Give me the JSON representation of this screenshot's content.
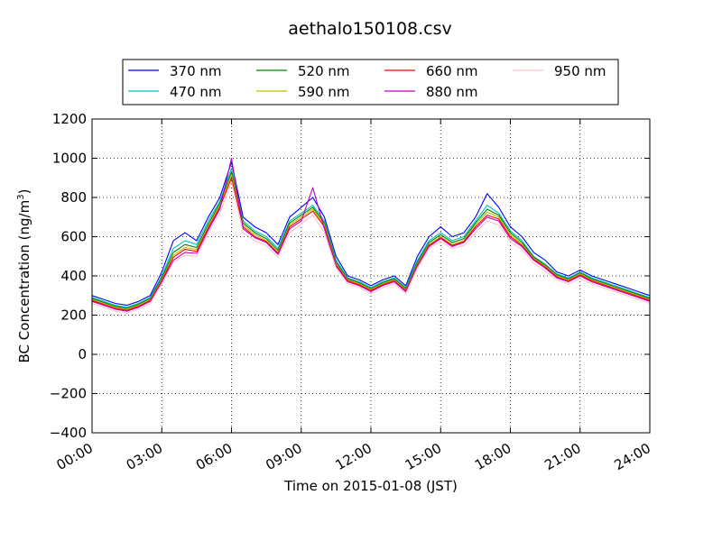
{
  "chart_data": {
    "type": "line",
    "title": "aethalo150108.csv",
    "xlabel": "Time on 2015-01-08 (JST)",
    "ylabel": "BC Concentration (ng/m",
    "ylabel_sup": "3",
    "ylabel_end": ")",
    "xlim": [
      "00:00",
      "24:00"
    ],
    "ylim": [
      -400,
      1200
    ],
    "x_ticks": [
      "00:00",
      "03:00",
      "06:00",
      "09:00",
      "12:00",
      "15:00",
      "18:00",
      "21:00",
      "24:00"
    ],
    "y_ticks": [
      -400,
      -200,
      0,
      200,
      400,
      600,
      800,
      1000,
      1200
    ],
    "grid": true,
    "legend_placement": "top",
    "x": [
      "00:00",
      "00:30",
      "01:00",
      "01:30",
      "02:00",
      "02:30",
      "03:00",
      "03:30",
      "04:00",
      "04:30",
      "05:00",
      "05:30",
      "06:00",
      "06:30",
      "07:00",
      "07:30",
      "08:00",
      "08:30",
      "09:00",
      "09:30",
      "10:00",
      "10:30",
      "11:00",
      "11:30",
      "12:00",
      "12:30",
      "13:00",
      "13:30",
      "14:00",
      "14:30",
      "15:00",
      "15:30",
      "16:00",
      "16:30",
      "17:00",
      "17:30",
      "18:00",
      "18:30",
      "19:00",
      "19:30",
      "20:00",
      "20:30",
      "21:00",
      "21:30",
      "22:00",
      "22:30",
      "23:00",
      "23:30",
      "24:00"
    ],
    "series": [
      {
        "name": "370 nm",
        "color": "#0000ff",
        "values": [
          300,
          280,
          260,
          250,
          270,
          300,
          420,
          580,
          620,
          580,
          700,
          800,
          980,
          700,
          650,
          620,
          560,
          700,
          750,
          800,
          700,
          500,
          400,
          380,
          350,
          380,
          400,
          350,
          500,
          600,
          650,
          600,
          620,
          700,
          820,
          750,
          650,
          600,
          520,
          480,
          420,
          400,
          430,
          400,
          380,
          360,
          340,
          320,
          300
        ]
      },
      {
        "name": "470 nm",
        "color": "#00bfbf",
        "values": [
          290,
          270,
          250,
          240,
          260,
          290,
          400,
          540,
          580,
          560,
          680,
          780,
          950,
          680,
          630,
          600,
          540,
          680,
          720,
          760,
          680,
          480,
          390,
          370,
          340,
          370,
          390,
          340,
          480,
          580,
          620,
          580,
          600,
          680,
          760,
          720,
          630,
          580,
          500,
          460,
          410,
          390,
          420,
          390,
          370,
          350,
          330,
          310,
          290
        ]
      },
      {
        "name": "520 nm",
        "color": "#008000",
        "values": [
          285,
          265,
          245,
          235,
          255,
          285,
          390,
          520,
          560,
          545,
          665,
          770,
          930,
          670,
          620,
          590,
          530,
          670,
          710,
          750,
          670,
          470,
          385,
          365,
          335,
          365,
          385,
          335,
          470,
          570,
          610,
          570,
          590,
          670,
          740,
          710,
          620,
          570,
          495,
          455,
          405,
          385,
          415,
          385,
          365,
          345,
          325,
          305,
          285
        ]
      },
      {
        "name": "590 nm",
        "color": "#bfbf00",
        "values": [
          280,
          260,
          240,
          230,
          250,
          280,
          380,
          505,
          545,
          535,
          655,
          760,
          915,
          660,
          610,
          580,
          520,
          660,
          700,
          740,
          660,
          460,
          380,
          360,
          330,
          360,
          380,
          330,
          460,
          560,
          600,
          560,
          580,
          660,
          725,
          700,
          610,
          560,
          490,
          450,
          400,
          380,
          410,
          380,
          360,
          340,
          320,
          300,
          280
        ]
      },
      {
        "name": "660 nm",
        "color": "#ff0000",
        "values": [
          275,
          255,
          235,
          225,
          245,
          275,
          375,
          495,
          535,
          525,
          645,
          750,
          900,
          650,
          600,
          575,
          515,
          650,
          690,
          730,
          650,
          455,
          375,
          355,
          325,
          355,
          375,
          325,
          455,
          555,
          595,
          555,
          575,
          650,
          710,
          690,
          600,
          555,
          485,
          445,
          395,
          375,
          405,
          375,
          355,
          335,
          315,
          295,
          275
        ]
      },
      {
        "name": "880 nm",
        "color": "#bf00bf",
        "values": [
          270,
          250,
          230,
          220,
          240,
          270,
          370,
          480,
          520,
          515,
          635,
          740,
          1000,
          640,
          595,
          570,
          510,
          640,
          680,
          850,
          640,
          450,
          370,
          350,
          320,
          350,
          370,
          320,
          450,
          550,
          590,
          550,
          570,
          640,
          700,
          680,
          590,
          550,
          480,
          440,
          390,
          370,
          400,
          370,
          350,
          330,
          310,
          290,
          270
        ]
      },
      {
        "name": "950 nm",
        "color": "#ffc0cb",
        "values": [
          260,
          240,
          220,
          210,
          230,
          260,
          360,
          470,
          505,
          500,
          620,
          720,
          880,
          620,
          580,
          555,
          495,
          620,
          665,
          710,
          620,
          440,
          360,
          340,
          310,
          340,
          360,
          310,
          440,
          540,
          575,
          540,
          555,
          620,
          680,
          660,
          575,
          535,
          465,
          425,
          380,
          360,
          385,
          360,
          340,
          320,
          300,
          280,
          260
        ]
      }
    ]
  }
}
